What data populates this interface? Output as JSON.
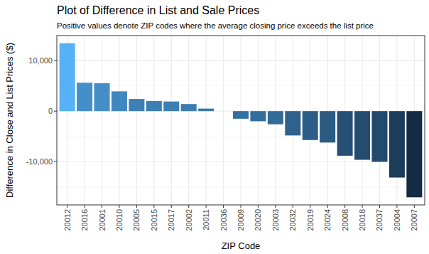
{
  "chart_data": {
    "type": "bar",
    "title": "Plot of Difference in List and Sale Prices",
    "subtitle": "Positive values denote ZIP codes where the average closing price exceeds the list price",
    "x_label": "ZIP Code",
    "y_label": "Difference in Close and List Prices ($)",
    "categories": [
      "20012",
      "20016",
      "20001",
      "20010",
      "20005",
      "20015",
      "20017",
      "20002",
      "20011",
      "20036",
      "20009",
      "20020",
      "20003",
      "20032",
      "20019",
      "20024",
      "20008",
      "20018",
      "20037",
      "20004",
      "20007"
    ],
    "values": [
      13400,
      5600,
      5500,
      3900,
      2400,
      2000,
      1900,
      1400,
      500,
      0,
      -1500,
      -2000,
      -2600,
      -4800,
      -5700,
      -6200,
      -8800,
      -9600,
      -10000,
      -13100,
      -17000
    ],
    "colors": [
      "#56B1F7",
      "#458FC9",
      "#458EC8",
      "#4187BF",
      "#3E80B6",
      "#3D7FB4",
      "#3D7EB3",
      "#3C7CB0",
      "#3A78AB",
      "#3876A8",
      "#356F9F",
      "#346D9C",
      "#336B98",
      "#2E618B",
      "#2C5D86",
      "#2B5B83",
      "#254F74",
      "#234C6F",
      "#224A6C",
      "#1C3C5A",
      "#132B43"
    ],
    "ylim": [
      -18500,
      14900
    ],
    "yticks": [
      {
        "value": -10000,
        "label": "-10,000"
      },
      0,
      {
        "value": 10000,
        "label": "10,000"
      }
    ],
    "grid": true
  }
}
